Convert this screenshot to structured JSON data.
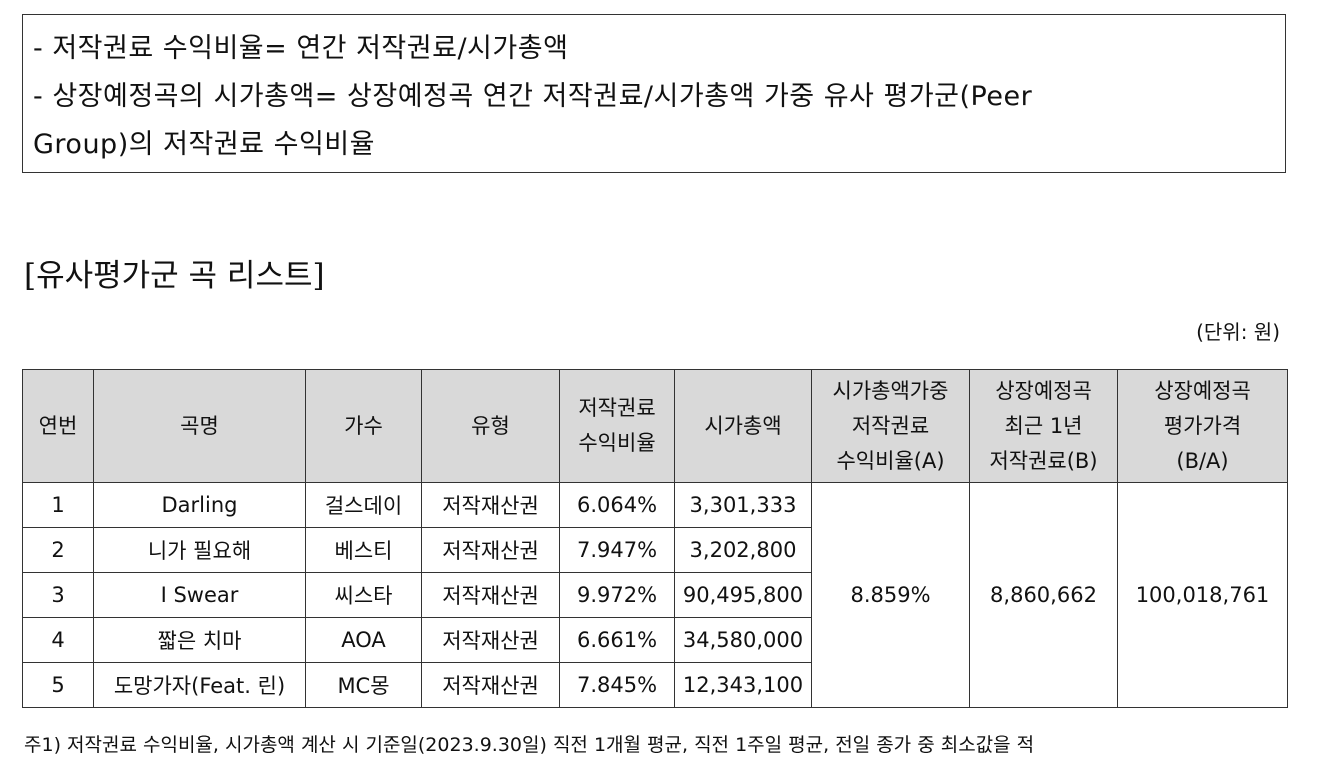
{
  "formula_box": {
    "line1": "- 저작권료 수익비율= 연간 저작권료/시가총액",
    "line2": "- 상장예정곡의 시가총액= 상장예정곡 연간 저작권료/시가총액 가중 유사 평가군(Peer",
    "line3": "Group)의 저작권료 수익비율"
  },
  "section_title": "[유사평가군 곡 리스트]",
  "unit": "(단위: 원)",
  "table": {
    "headers": {
      "no": "연번",
      "title": "곡명",
      "artist": "가수",
      "type": "유형",
      "ratio": [
        "저작권료",
        "수익비율"
      ],
      "market_cap": "시가총액",
      "weighted": [
        "시가총액가중",
        "저작권료",
        "수익비율(A)"
      ],
      "recent": [
        "상장예정곡",
        "최근 1년",
        "저작권료(B)"
      ],
      "price": [
        "상장예정곡",
        "평가가격",
        "(B/A)"
      ]
    },
    "rows": [
      {
        "no": "1",
        "title": "Darling",
        "artist": "걸스데이",
        "type": "저작재산권",
        "ratio": "6.064%",
        "market_cap": "3,301,333"
      },
      {
        "no": "2",
        "title": "니가 필요해",
        "artist": "베스티",
        "type": "저작재산권",
        "ratio": "7.947%",
        "market_cap": "3,202,800"
      },
      {
        "no": "3",
        "title": "I Swear",
        "artist": "씨스타",
        "type": "저작재산권",
        "ratio": "9.972%",
        "market_cap": "90,495,800"
      },
      {
        "no": "4",
        "title": "짧은 치마",
        "artist": "AOA",
        "type": "저작재산권",
        "ratio": "6.661%",
        "market_cap": "34,580,000"
      },
      {
        "no": "5",
        "title": "도망가자(Feat. 린)",
        "artist": "MC몽",
        "type": "저작재산권",
        "ratio": "7.845%",
        "market_cap": "12,343,100"
      }
    ],
    "merged": {
      "weighted_ratio": "8.859%",
      "recent_royalty": "8,860,662",
      "price": "100,018,761"
    }
  },
  "footnote": "주1) 저작권료 수익비율, 시가총액 계산 시 기준일(2023.9.30일) 직전 1개월 평균, 직전 1주일 평균, 전일 종가 중 최소값을 적"
}
